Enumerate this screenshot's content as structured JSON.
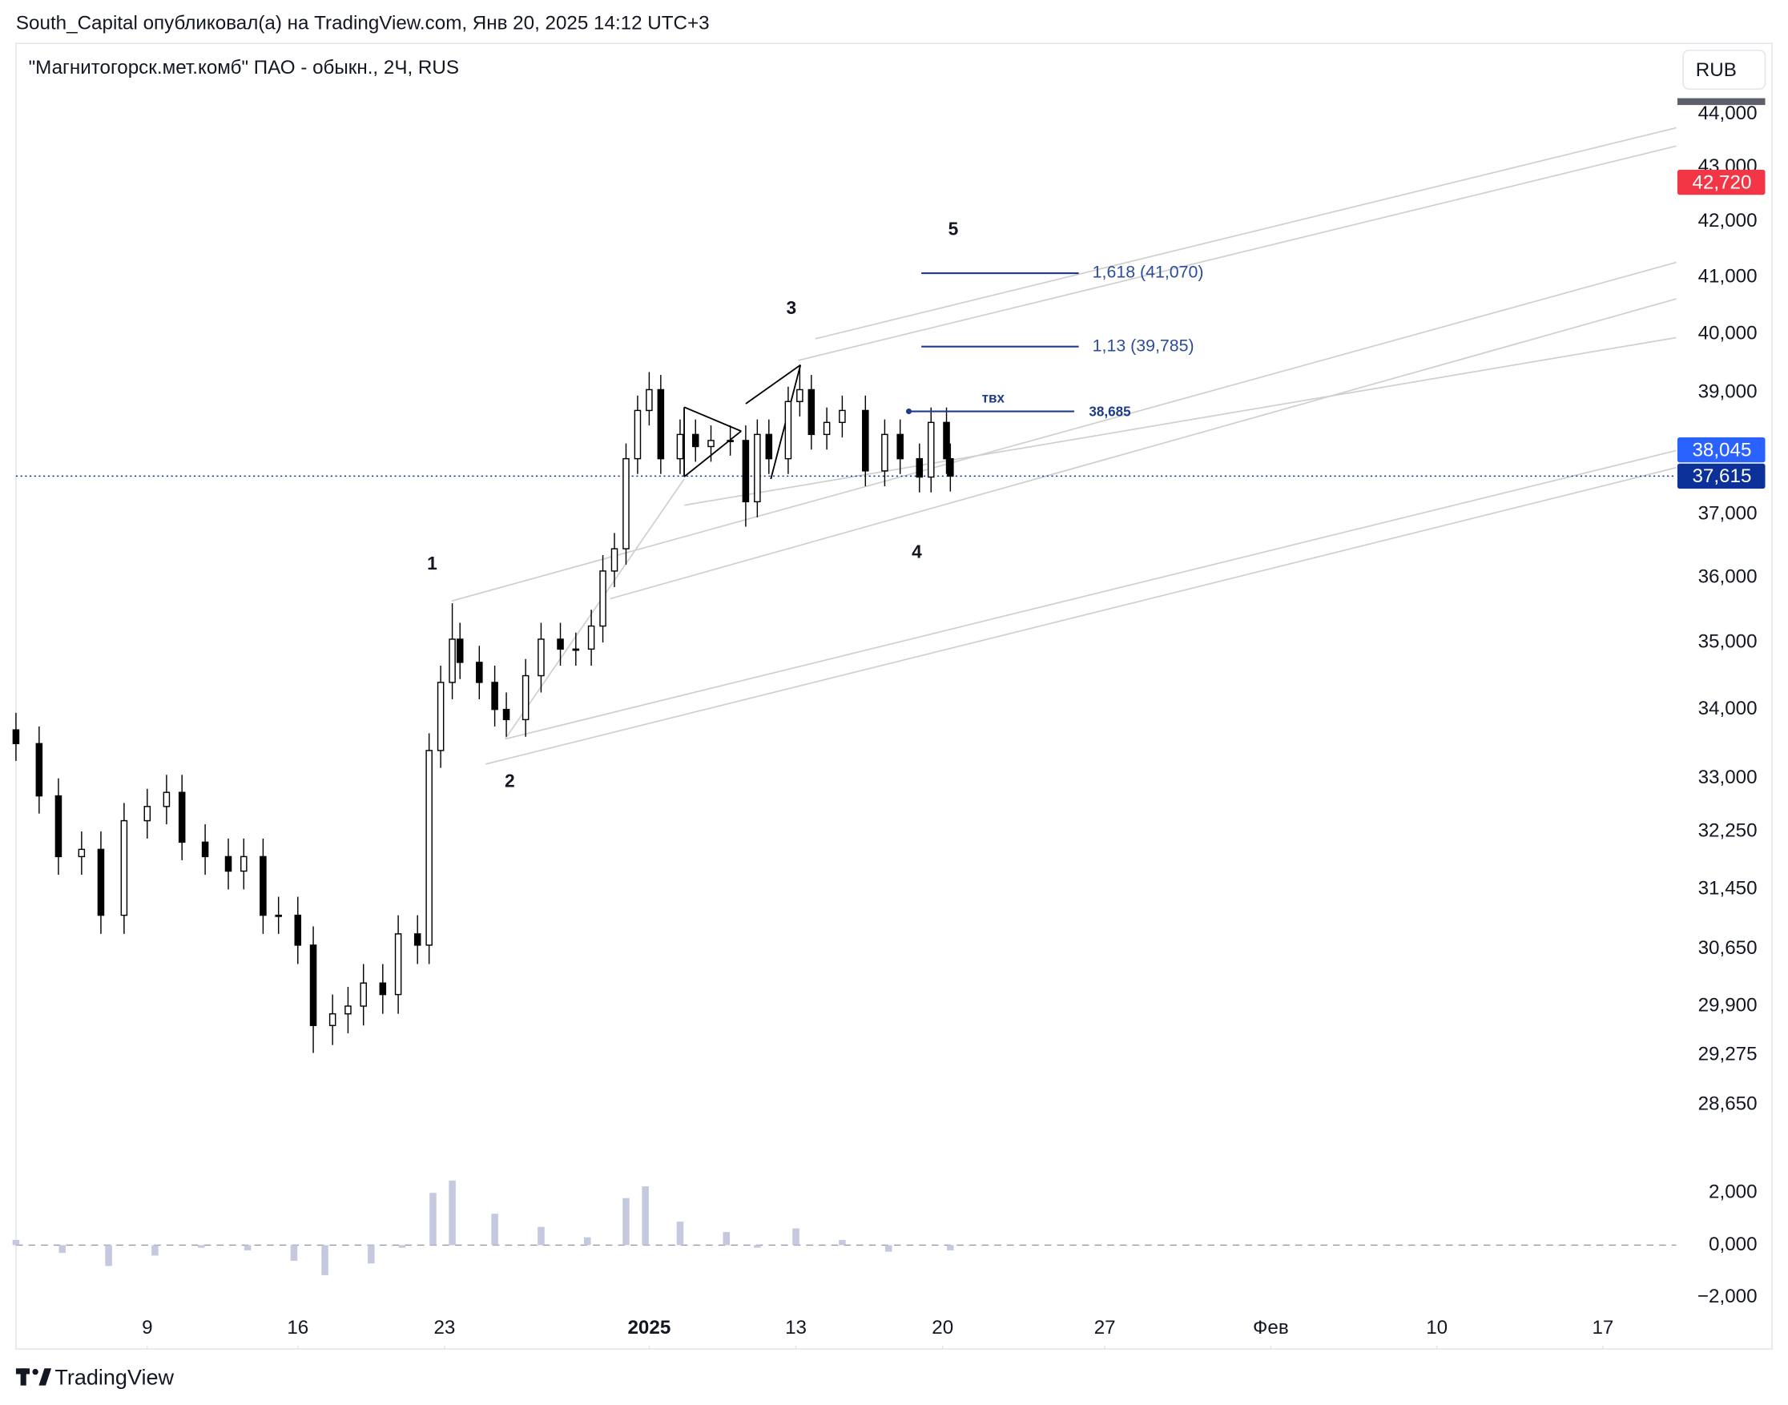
{
  "header": {
    "published": "South_Capital опубликовал(а) на TradingView.com, Янв 20, 2025 14:12 UTC+3",
    "brand": "TradingView"
  },
  "chart_data": {
    "type": "candlestick",
    "title": "\"Магнитогорск.мет.комб\" ПАО - обыкн., 2Ч, RUS",
    "currency": "RUB",
    "log_scale": true,
    "grid": false,
    "up_color": "#ffffff",
    "down_color": "#000000",
    "x": [
      0,
      6,
      11,
      17,
      22,
      28,
      34,
      39,
      43,
      49,
      55,
      59,
      64,
      68,
      73,
      77,
      82,
      86,
      90,
      95,
      99,
      104,
      107,
      110,
      113,
      115,
      120,
      124,
      127,
      132,
      136,
      141,
      145,
      149,
      152,
      155,
      158,
      161,
      164,
      167,
      172,
      176,
      180,
      185,
      189,
      192,
      195,
      200,
      203,
      206,
      210,
      214,
      220,
      225,
      229,
      234,
      237,
      241,
      242
    ],
    "open": [
      33700,
      33500,
      32750,
      31900,
      32000,
      31100,
      32400,
      32600,
      32800,
      32100,
      31900,
      31700,
      31900,
      31100,
      31100,
      30700,
      29650,
      29800,
      29900,
      30200,
      30050,
      30850,
      30700,
      33400,
      34400,
      35050,
      34700,
      34400,
      34000,
      33850,
      34500,
      35050,
      34900,
      34900,
      35250,
      36100,
      36450,
      37900,
      38700,
      39050,
      37900,
      38300,
      38100,
      38200,
      38200,
      37200,
      38300,
      37900,
      38850,
      39050,
      38300,
      38500,
      38700,
      37700,
      38300,
      37900,
      37600,
      38500,
      37900
    ],
    "high": [
      33950,
      33750,
      33000,
      32250,
      32250,
      32650,
      32850,
      33050,
      33050,
      32350,
      32150,
      32150,
      32150,
      31350,
      31350,
      30950,
      30050,
      30150,
      30450,
      30450,
      31100,
      31100,
      33650,
      34650,
      35600,
      35300,
      34950,
      34650,
      34250,
      34750,
      35300,
      35300,
      35150,
      35500,
      36350,
      36700,
      38150,
      38950,
      39350,
      39300,
      38550,
      38550,
      38450,
      38450,
      38450,
      38550,
      38550,
      39100,
      39450,
      39300,
      38750,
      38950,
      38950,
      38550,
      38550,
      38150,
      38750,
      38750,
      38150
    ],
    "low": [
      33250,
      32500,
      31650,
      31650,
      30850,
      30850,
      32150,
      32350,
      31850,
      31650,
      31450,
      31450,
      30850,
      30850,
      30450,
      29300,
      29400,
      29550,
      29650,
      29800,
      29800,
      30450,
      30450,
      33150,
      34150,
      34450,
      34150,
      33750,
      33600,
      33600,
      34250,
      34650,
      34650,
      34650,
      35000,
      35850,
      36200,
      37650,
      38450,
      37650,
      37650,
      37850,
      37850,
      37950,
      36800,
      36950,
      37650,
      37650,
      38600,
      38050,
      38050,
      38250,
      37450,
      37450,
      37650,
      37350,
      37350,
      37650,
      37365
    ],
    "close": [
      33500,
      32750,
      31900,
      32000,
      31100,
      32400,
      32600,
      32800,
      32100,
      31900,
      31700,
      31900,
      31100,
      31100,
      30700,
      29650,
      29800,
      29900,
      30200,
      30050,
      30850,
      30700,
      33400,
      34400,
      35050,
      34700,
      34400,
      34000,
      33850,
      34500,
      35050,
      34900,
      34900,
      35250,
      36100,
      36450,
      37900,
      38700,
      39050,
      37900,
      38300,
      38100,
      38200,
      38200,
      37200,
      38300,
      37900,
      38850,
      39050,
      38300,
      38500,
      38700,
      37700,
      38300,
      37900,
      37600,
      38500,
      37900,
      37615
    ],
    "xlim": [
      0,
      430
    ],
    "xticks": [
      {
        "value": 34,
        "label": "9"
      },
      {
        "value": 73,
        "label": "16"
      },
      {
        "value": 111,
        "label": "23"
      },
      {
        "value": 164,
        "label": "2025",
        "bold": true
      },
      {
        "value": 202,
        "label": "13"
      },
      {
        "value": 240,
        "label": "20"
      },
      {
        "value": 282,
        "label": "27"
      },
      {
        "value": 325,
        "label": "Фев"
      },
      {
        "value": 368,
        "label": "10"
      },
      {
        "value": 411,
        "label": "17"
      }
    ],
    "ylim": [
      28072,
      45323
    ],
    "yticks": [
      {
        "value": 28650,
        "label": "28,650"
      },
      {
        "value": 29275,
        "label": "29,275"
      },
      {
        "value": 29900,
        "label": "29,900"
      },
      {
        "value": 30650,
        "label": "30,650"
      },
      {
        "value": 31450,
        "label": "31,450"
      },
      {
        "value": 32250,
        "label": "32,250"
      },
      {
        "value": 33000,
        "label": "33,000"
      },
      {
        "value": 34000,
        "label": "34,000"
      },
      {
        "value": 35000,
        "label": "35,000"
      },
      {
        "value": 36000,
        "label": "36,000"
      },
      {
        "value": 37000,
        "label": "37,000"
      },
      {
        "value": 39000,
        "label": "39,000"
      },
      {
        "value": 40000,
        "label": "40,000"
      },
      {
        "value": 41000,
        "label": "41,000"
      },
      {
        "value": 42000,
        "label": "42,000"
      },
      {
        "value": 43000,
        "label": "43,000"
      },
      {
        "value": 44000,
        "label": "44,000"
      }
    ],
    "price_tags": [
      {
        "value": 42720,
        "label": "42,720",
        "color": "#f23645"
      },
      {
        "value": 38045,
        "label": "38,045",
        "color": "#2962ff"
      },
      {
        "value": 37615,
        "label": "37,615",
        "color": "#0c3299"
      }
    ],
    "last_price_line": 37615,
    "fib_levels": [
      {
        "value": 41070,
        "label": "1,618 (41,070)"
      },
      {
        "value": 39785,
        "label": "1,13 (39,785)"
      }
    ],
    "entry": {
      "label": "твх",
      "value": 38685,
      "value_label": "38,685"
    },
    "wave_labels": [
      "1",
      "2",
      "3",
      "4",
      "5"
    ],
    "oscillator": {
      "x": [
        0,
        12,
        24,
        36,
        48,
        60,
        72,
        80,
        92,
        100,
        108,
        113,
        124,
        136,
        148,
        158,
        163,
        172,
        184,
        192,
        202,
        214,
        226,
        242
      ],
      "values": [
        200,
        -300,
        -800,
        -400,
        -100,
        -200,
        -600,
        -1150,
        -700,
        -100,
        2000,
        2470,
        1200,
        700,
        300,
        1800,
        2250,
        900,
        500,
        -100,
        640,
        200,
        -250,
        -200
      ],
      "color": "#c5c9e0",
      "ylim": [
        -2100,
        3050
      ],
      "yticks": [
        {
          "value": 2000,
          "label": "2,000"
        },
        {
          "value": 0,
          "label": "0,000"
        },
        {
          "value": -2000,
          "label": "−2,000"
        }
      ]
    }
  }
}
